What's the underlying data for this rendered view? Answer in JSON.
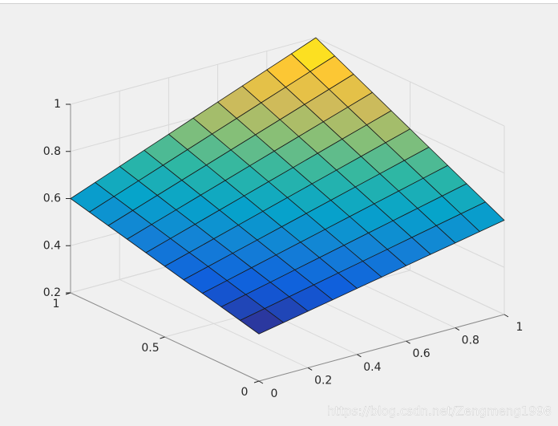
{
  "chart_data": {
    "type": "surface",
    "x": [
      0,
      0.1,
      0.2,
      0.3,
      0.4,
      0.5,
      0.6,
      0.7,
      0.8,
      0.9,
      1
    ],
    "y": [
      0,
      0.1,
      0.2,
      0.3,
      0.4,
      0.5,
      0.6,
      0.7,
      0.8,
      0.9,
      1
    ],
    "z": [
      [
        0.4,
        0.42,
        0.44,
        0.46,
        0.48,
        0.5,
        0.52,
        0.54,
        0.56,
        0.58,
        0.6
      ],
      [
        0.42,
        0.442,
        0.464,
        0.486,
        0.508,
        0.53,
        0.552,
        0.574,
        0.596,
        0.618,
        0.64
      ],
      [
        0.44,
        0.464,
        0.488,
        0.512,
        0.536,
        0.56,
        0.584,
        0.608,
        0.632,
        0.656,
        0.68
      ],
      [
        0.46,
        0.486,
        0.512,
        0.538,
        0.564,
        0.59,
        0.616,
        0.642,
        0.668,
        0.694,
        0.72
      ],
      [
        0.48,
        0.508,
        0.536,
        0.564,
        0.592,
        0.62,
        0.648,
        0.676,
        0.704,
        0.732,
        0.76
      ],
      [
        0.5,
        0.53,
        0.56,
        0.59,
        0.62,
        0.65,
        0.68,
        0.71,
        0.74,
        0.77,
        0.8
      ],
      [
        0.52,
        0.552,
        0.584,
        0.616,
        0.648,
        0.68,
        0.712,
        0.744,
        0.776,
        0.808,
        0.84
      ],
      [
        0.54,
        0.574,
        0.608,
        0.642,
        0.676,
        0.71,
        0.744,
        0.778,
        0.812,
        0.846,
        0.88
      ],
      [
        0.56,
        0.596,
        0.632,
        0.668,
        0.704,
        0.74,
        0.776,
        0.812,
        0.848,
        0.884,
        0.92
      ],
      [
        0.58,
        0.618,
        0.656,
        0.694,
        0.732,
        0.77,
        0.808,
        0.846,
        0.884,
        0.922,
        0.96
      ],
      [
        0.6,
        0.64,
        0.68,
        0.72,
        0.76,
        0.8,
        0.84,
        0.88,
        0.92,
        0.96,
        1
      ]
    ],
    "xlim": [
      0,
      1
    ],
    "ylim": [
      0,
      1
    ],
    "zlim": [
      0.2,
      1
    ],
    "xticks": [
      0,
      0.2,
      0.4,
      0.6,
      0.8,
      1
    ],
    "yticks": [
      0,
      0.5,
      1
    ],
    "zticks": [
      0.2,
      0.4,
      0.6,
      0.8,
      1
    ],
    "grid": true,
    "edge_color": "#1a1a1a",
    "colormap": [
      "#352a87",
      "#0f5cdd",
      "#1481d6",
      "#06a4ca",
      "#2eb7a4",
      "#87bf77",
      "#d1bb59",
      "#fec832",
      "#f9fb0e"
    ]
  },
  "watermark": "https://blog.csdn.net/Zengmeng1998"
}
